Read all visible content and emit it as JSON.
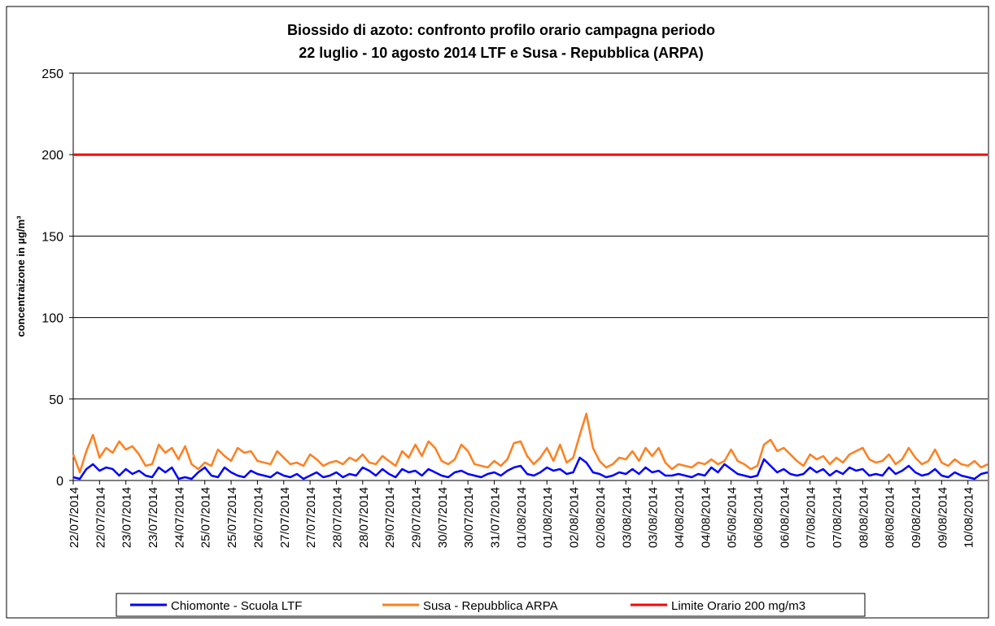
{
  "chart_data": {
    "type": "line",
    "title": "Biossido di azoto: confronto profilo orario campagna periodo",
    "subtitle": "22 luglio - 10 agosto 2014 LTF e Susa - Repubblica (ARPA)",
    "y_label": "concentraizone in µg/m³",
    "ylim": [
      0,
      250
    ],
    "yticks": [
      0,
      50,
      100,
      150,
      200,
      250
    ],
    "grid": true,
    "categories": [
      "22/07/2014",
      null,
      null,
      null,
      "22/07/2014",
      null,
      null,
      null,
      "23/07/2014",
      null,
      null,
      null,
      "23/07/2014",
      null,
      null,
      null,
      "24/07/2014",
      null,
      null,
      null,
      "25/07/2014",
      null,
      null,
      null,
      "25/07/2014",
      null,
      null,
      null,
      "26/07/2014",
      null,
      null,
      null,
      "27/07/2014",
      null,
      null,
      null,
      "27/07/2014",
      null,
      null,
      null,
      "28/07/2014",
      null,
      null,
      null,
      "28/07/2014",
      null,
      null,
      null,
      "29/07/2014",
      null,
      null,
      null,
      "29/07/2014",
      null,
      null,
      null,
      "30/07/2014",
      null,
      null,
      null,
      "30/07/2014",
      null,
      null,
      null,
      "31/07/2014",
      null,
      null,
      null,
      "01/08/2014",
      null,
      null,
      null,
      "01/08/2014",
      null,
      null,
      null,
      "02/08/2014",
      null,
      null,
      null,
      "02/08/2014",
      null,
      null,
      null,
      "03/08/2014",
      null,
      null,
      null,
      "03/08/2014",
      null,
      null,
      null,
      "04/08/2014",
      null,
      null,
      null,
      "04/08/2014",
      null,
      null,
      null,
      "05/08/2014",
      null,
      null,
      null,
      "06/08/2014",
      null,
      null,
      null,
      "06/08/2014",
      null,
      null,
      null,
      "07/08/2014",
      null,
      null,
      null,
      "07/08/2014",
      null,
      null,
      null,
      "08/08/2014",
      null,
      null,
      null,
      "08/08/2014",
      null,
      null,
      null,
      "09/08/2014",
      null,
      null,
      null,
      "09/08/2014",
      null,
      null,
      null,
      "10/08/2014",
      null,
      null,
      null
    ],
    "series": [
      {
        "name": "Chiomonte - Scuola LTF",
        "color": "#0000ff",
        "values": [
          2,
          1,
          7,
          10,
          6,
          8,
          7,
          3,
          7,
          4,
          6,
          3,
          2,
          8,
          5,
          8,
          1,
          2,
          1,
          5,
          8,
          3,
          2,
          8,
          5,
          3,
          2,
          6,
          4,
          3,
          2,
          5,
          3,
          2,
          4,
          1,
          3,
          5,
          2,
          3,
          5,
          2,
          4,
          3,
          8,
          6,
          3,
          7,
          4,
          2,
          7,
          5,
          6,
          3,
          7,
          5,
          3,
          2,
          5,
          6,
          4,
          3,
          2,
          4,
          5,
          3,
          6,
          8,
          9,
          4,
          3,
          5,
          8,
          6,
          7,
          4,
          5,
          14,
          11,
          5,
          4,
          2,
          3,
          5,
          4,
          7,
          4,
          8,
          5,
          6,
          3,
          3,
          4,
          3,
          2,
          4,
          3,
          8,
          5,
          10,
          7,
          4,
          3,
          2,
          3,
          13,
          9,
          5,
          7,
          4,
          3,
          4,
          8,
          5,
          7,
          3,
          6,
          4,
          8,
          6,
          7,
          3,
          4,
          3,
          8,
          4,
          6,
          9,
          5,
          3,
          4,
          7,
          3,
          2,
          5,
          3,
          2,
          1,
          4,
          5
        ]
      },
      {
        "name": "Susa - Repubblica ARPA",
        "color": "#ff7f1f",
        "values": [
          16,
          5,
          18,
          28,
          14,
          20,
          17,
          24,
          19,
          21,
          16,
          9,
          10,
          22,
          17,
          20,
          13,
          21,
          10,
          7,
          11,
          9,
          19,
          15,
          12,
          20,
          17,
          18,
          12,
          11,
          10,
          18,
          14,
          10,
          11,
          9,
          16,
          13,
          9,
          11,
          12,
          10,
          14,
          12,
          16,
          11,
          10,
          15,
          12,
          9,
          18,
          14,
          22,
          15,
          24,
          20,
          12,
          10,
          13,
          22,
          18,
          10,
          9,
          8,
          12,
          9,
          13,
          23,
          24,
          15,
          10,
          14,
          20,
          12,
          22,
          11,
          14,
          28,
          41,
          20,
          12,
          8,
          10,
          14,
          13,
          18,
          12,
          20,
          15,
          20,
          11,
          7,
          10,
          9,
          8,
          11,
          10,
          13,
          10,
          12,
          19,
          12,
          10,
          7,
          9,
          22,
          25,
          18,
          20,
          16,
          12,
          9,
          16,
          13,
          15,
          10,
          14,
          11,
          16,
          18,
          20,
          13,
          11,
          12,
          16,
          10,
          13,
          20,
          14,
          10,
          12,
          19,
          11,
          9,
          13,
          10,
          9,
          12,
          8,
          10
        ]
      },
      {
        "name": "Limite Orario 200 mg/m3",
        "color": "#ff0000",
        "values": [
          200,
          200,
          200,
          200,
          200,
          200,
          200,
          200,
          200,
          200,
          200,
          200,
          200,
          200,
          200,
          200,
          200,
          200,
          200,
          200,
          200,
          200,
          200,
          200,
          200,
          200,
          200,
          200,
          200,
          200,
          200,
          200,
          200,
          200,
          200,
          200,
          200,
          200,
          200,
          200,
          200,
          200,
          200,
          200,
          200,
          200,
          200,
          200,
          200,
          200,
          200,
          200,
          200,
          200,
          200,
          200,
          200,
          200,
          200,
          200,
          200,
          200,
          200,
          200,
          200,
          200,
          200,
          200,
          200,
          200,
          200,
          200,
          200,
          200,
          200,
          200,
          200,
          200,
          200,
          200,
          200,
          200,
          200,
          200,
          200,
          200,
          200,
          200,
          200,
          200,
          200,
          200,
          200,
          200,
          200,
          200,
          200,
          200,
          200,
          200,
          200,
          200,
          200,
          200,
          200,
          200,
          200,
          200,
          200,
          200,
          200,
          200,
          200,
          200,
          200,
          200,
          200,
          200,
          200,
          200,
          200,
          200,
          200,
          200,
          200,
          200,
          200,
          200,
          200,
          200,
          200,
          200,
          200,
          200,
          200,
          200,
          200,
          200,
          200,
          200
        ]
      }
    ]
  }
}
